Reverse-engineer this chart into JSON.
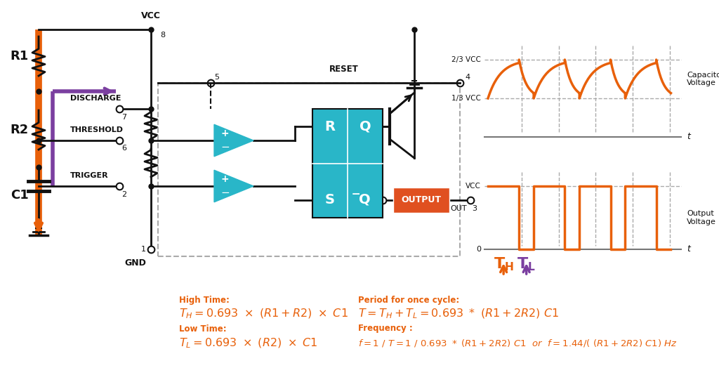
{
  "bg_color": "#ffffff",
  "orange_color": "#e8600a",
  "purple_color": "#7b3fa0",
  "teal_color": "#29b6c8",
  "red_color": "#e05020",
  "black": "#111111",
  "dashed_gray": "#aaaaaa",
  "gray": "#777777",
  "label_high_time": "High Time:",
  "label_low_time": "Low Time:",
  "label_period": "Period for once cycle:",
  "label_freq": "Frequency :",
  "label_cap_voltage": "Capacitor\nVoltage",
  "label_out_voltage": "Output\nVoltage",
  "label_2_3_VCC": "2/3 VCC",
  "label_1_3_VCC": "1/3 VCC",
  "label_VCC_wf": "VCC",
  "label_0": "0",
  "label_t": "t",
  "label_OUT": "OUT",
  "label_GND": "GND",
  "label_VCC_pin": "VCC",
  "label_RESET": "RESET",
  "label_DISCHARGE": "DISCHARGE",
  "label_THRESHOLD": "THRESHOLD",
  "label_TRIGGER": "TRIGGER",
  "label_OUTPUT": "OUTPUT",
  "label_R": "R",
  "label_Q": "Q",
  "label_S": "S",
  "label_Qbar": "̅Q",
  "label_R1": "R1",
  "label_R2": "R2",
  "label_C1": "C1"
}
